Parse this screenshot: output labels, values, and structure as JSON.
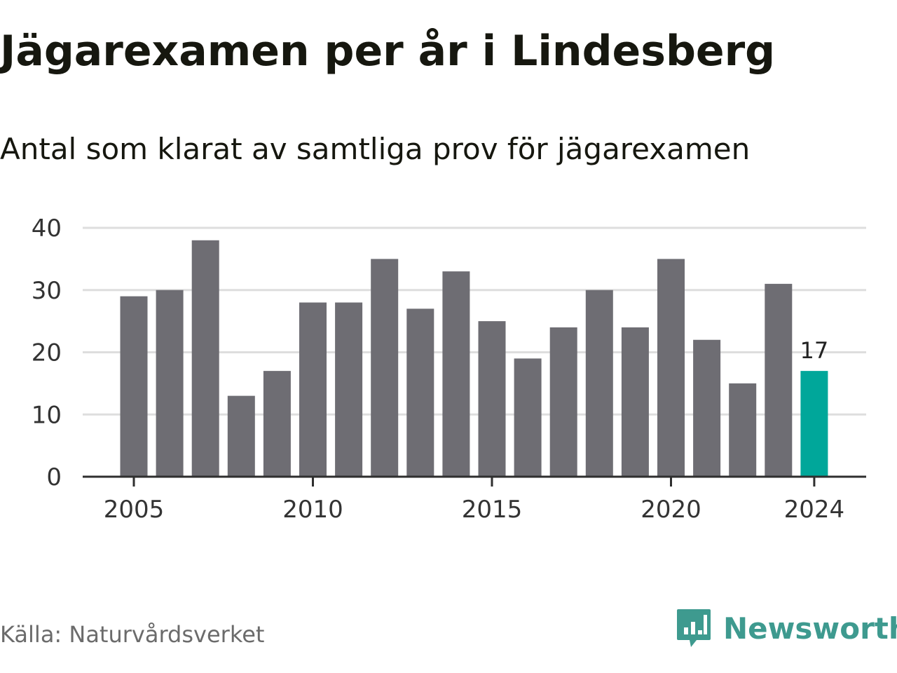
{
  "title": "Jägarexamen per år i Lindesberg",
  "subtitle": "Antal som klarat av samtliga prov för jägarexamen",
  "source": "Källa: Naturvårdsverket",
  "brand": {
    "name": "Newsworthy",
    "icon": "newsworthy-logo-icon"
  },
  "colors": {
    "bar": "#6e6d73",
    "highlight": "#00a79a",
    "grid": "#dedede",
    "axis": "#2f2f2f",
    "tick_label": "#333333",
    "brand": "#3e9a8f"
  },
  "chart_data": {
    "type": "bar",
    "x": [
      2005,
      2006,
      2007,
      2008,
      2009,
      2010,
      2011,
      2012,
      2013,
      2014,
      2015,
      2016,
      2017,
      2018,
      2019,
      2020,
      2021,
      2022,
      2023,
      2024
    ],
    "values": [
      29,
      30,
      38,
      13,
      17,
      28,
      28,
      35,
      27,
      33,
      25,
      19,
      24,
      30,
      24,
      35,
      22,
      15,
      31,
      17
    ],
    "highlight": 2024,
    "data_labels": [
      {
        "x": 2024,
        "label": "17"
      }
    ],
    "ylim": [
      0,
      40
    ],
    "y_ticks": [
      0,
      10,
      20,
      30,
      40
    ],
    "y_tick_labels": [
      "0",
      "10",
      "20",
      "30",
      "40"
    ],
    "x_ticks": [
      2005,
      2010,
      2015,
      2020,
      2024
    ],
    "x_tick_labels": [
      "2005",
      "2010",
      "2015",
      "2020",
      "2024"
    ],
    "grid": "horizontal",
    "xlabel": "",
    "ylabel": ""
  }
}
